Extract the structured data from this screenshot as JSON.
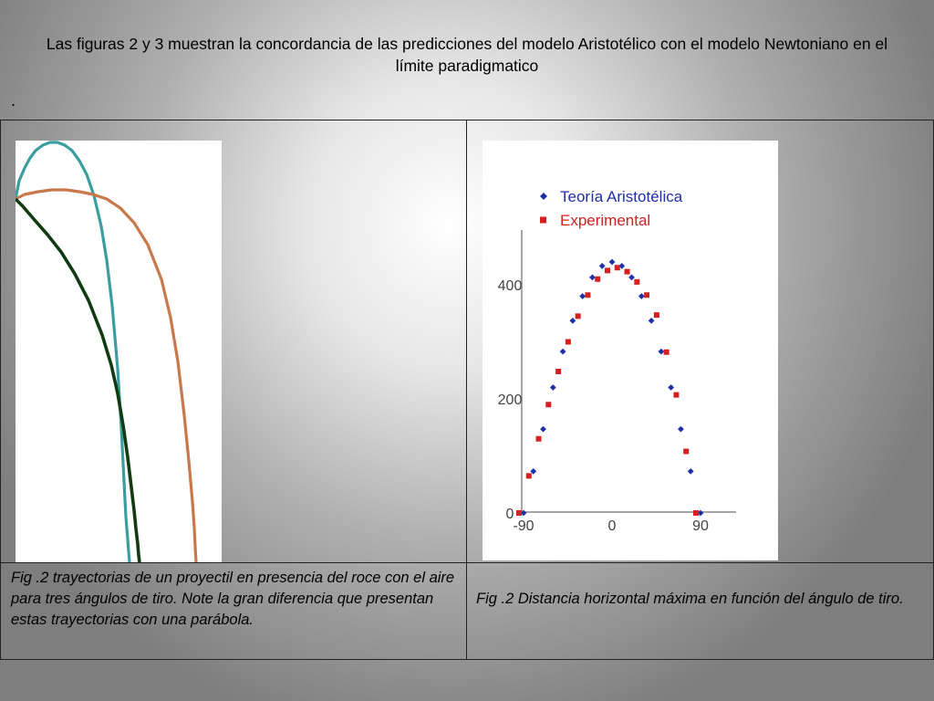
{
  "slide": {
    "title": "Las figuras 2 y 3 muestran la concordancia de las predicciones del modelo Aristotélico con el modelo Newtoniano en el límite paradigmatico",
    "bullet": "."
  },
  "captions": {
    "left": "Fig .2 trayectorias de un proyectil en presencia del roce con el aire para tres ángulos de tiro. Note la gran diferencia que presentan estas trayectorias con una parábola.",
    "right": "Fig .2 Distancia horizontal máxima en función del ángulo de tiro."
  },
  "chart_data": [
    {
      "type": "line",
      "title": "",
      "xlabel": "",
      "ylabel": "",
      "series": [
        {
          "color": "#3a9ea0",
          "x": [
            0,
            4,
            10,
            16,
            22,
            30,
            38,
            46,
            54,
            62,
            70,
            78,
            86,
            94,
            100,
            106,
            112,
            116,
            119,
            121,
            123,
            124,
            125
          ],
          "y": [
            398,
            418,
            432,
            443,
            451,
            457,
            460,
            460,
            457,
            451,
            440,
            425,
            402,
            368,
            331,
            281,
            212,
            147,
            88,
            50,
            25,
            12,
            0
          ]
        },
        {
          "color": "#c8784a",
          "x": [
            0,
            10,
            25,
            40,
            55,
            70,
            85,
            100,
            115,
            130,
            145,
            160,
            170,
            178,
            185,
            190,
            194,
            196,
            197,
            198
          ],
          "y": [
            398,
            403,
            406,
            408,
            408,
            406,
            403,
            398,
            388,
            372,
            348,
            310,
            268,
            220,
            161,
            111,
            66,
            38,
            17,
            0
          ]
        },
        {
          "color": "#123b12",
          "x": [
            0,
            8,
            20,
            35,
            50,
            65,
            80,
            95,
            105,
            112,
            118,
            123,
            127,
            130,
            132,
            134,
            135,
            136
          ],
          "y": [
            398,
            390,
            376,
            359,
            340,
            316,
            287,
            249,
            216,
            185,
            150,
            115,
            82,
            57,
            37,
            20,
            8,
            0
          ]
        }
      ]
    },
    {
      "type": "scatter",
      "title": "",
      "xlabel": "",
      "ylabel": "",
      "xlim": [
        -90,
        90
      ],
      "ylim": [
        0,
        440
      ],
      "x_ticks": [
        "-90",
        "0",
        "90"
      ],
      "y_ticks": [
        "0",
        "200",
        "400"
      ],
      "legend_position": "top",
      "series": [
        {
          "name": "Teoría Aristotélica",
          "color": "#1f2fa8",
          "marker": "diamond",
          "x": [
            -90,
            -80,
            -70,
            -60,
            -50,
            -40,
            -30,
            -20,
            -10,
            0,
            10,
            20,
            30,
            40,
            50,
            60,
            70,
            80,
            90
          ],
          "y": [
            0,
            73,
            147,
            220,
            283,
            337,
            380,
            413,
            433,
            440,
            433,
            413,
            380,
            337,
            283,
            220,
            147,
            73,
            0
          ]
        },
        {
          "name": "Experimental",
          "color": "#d42020",
          "marker": "square",
          "x": [
            -90,
            -80,
            -70,
            -60,
            -50,
            -40,
            -30,
            -20,
            -10,
            0,
            10,
            20,
            30,
            40,
            50,
            60,
            70,
            80,
            90
          ],
          "y": [
            0,
            65,
            130,
            190,
            248,
            300,
            345,
            382,
            410,
            425,
            430,
            423,
            405,
            382,
            347,
            282,
            207,
            108,
            0
          ]
        }
      ]
    }
  ]
}
